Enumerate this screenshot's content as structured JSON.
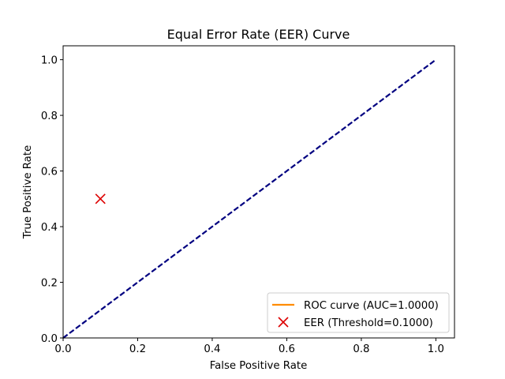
{
  "chart_data": {
    "type": "line",
    "title": "Equal Error Rate (EER) Curve",
    "xlabel": "False Positive Rate",
    "ylabel": "True Positive Rate",
    "xlim": [
      0.0,
      1.05
    ],
    "ylim": [
      0.0,
      1.05
    ],
    "xticks": [
      0.0,
      0.2,
      0.4,
      0.6,
      0.8,
      1.0
    ],
    "yticks": [
      0.0,
      0.2,
      0.4,
      0.6,
      0.8,
      1.0
    ],
    "xtick_labels": [
      "0.0",
      "0.2",
      "0.4",
      "0.6",
      "0.8",
      "1.0"
    ],
    "ytick_labels": [
      "0.0",
      "0.2",
      "0.4",
      "0.6",
      "0.8",
      "1.0"
    ],
    "grid": false,
    "legend_position": "bottom-right",
    "series": [
      {
        "name": "ROC curve (AUC=1.0000)",
        "style": "solid",
        "color": "#ff8c00",
        "x": [],
        "y": []
      },
      {
        "style": "dashed",
        "color": "#000080",
        "x": [
          0.0,
          1.0
        ],
        "y": [
          0.0,
          1.0
        ]
      }
    ],
    "markers": [
      {
        "name": "EER (Threshold=0.1000)",
        "marker": "x",
        "color": "#dd0000",
        "x": 0.1,
        "y": 0.5
      }
    ]
  }
}
